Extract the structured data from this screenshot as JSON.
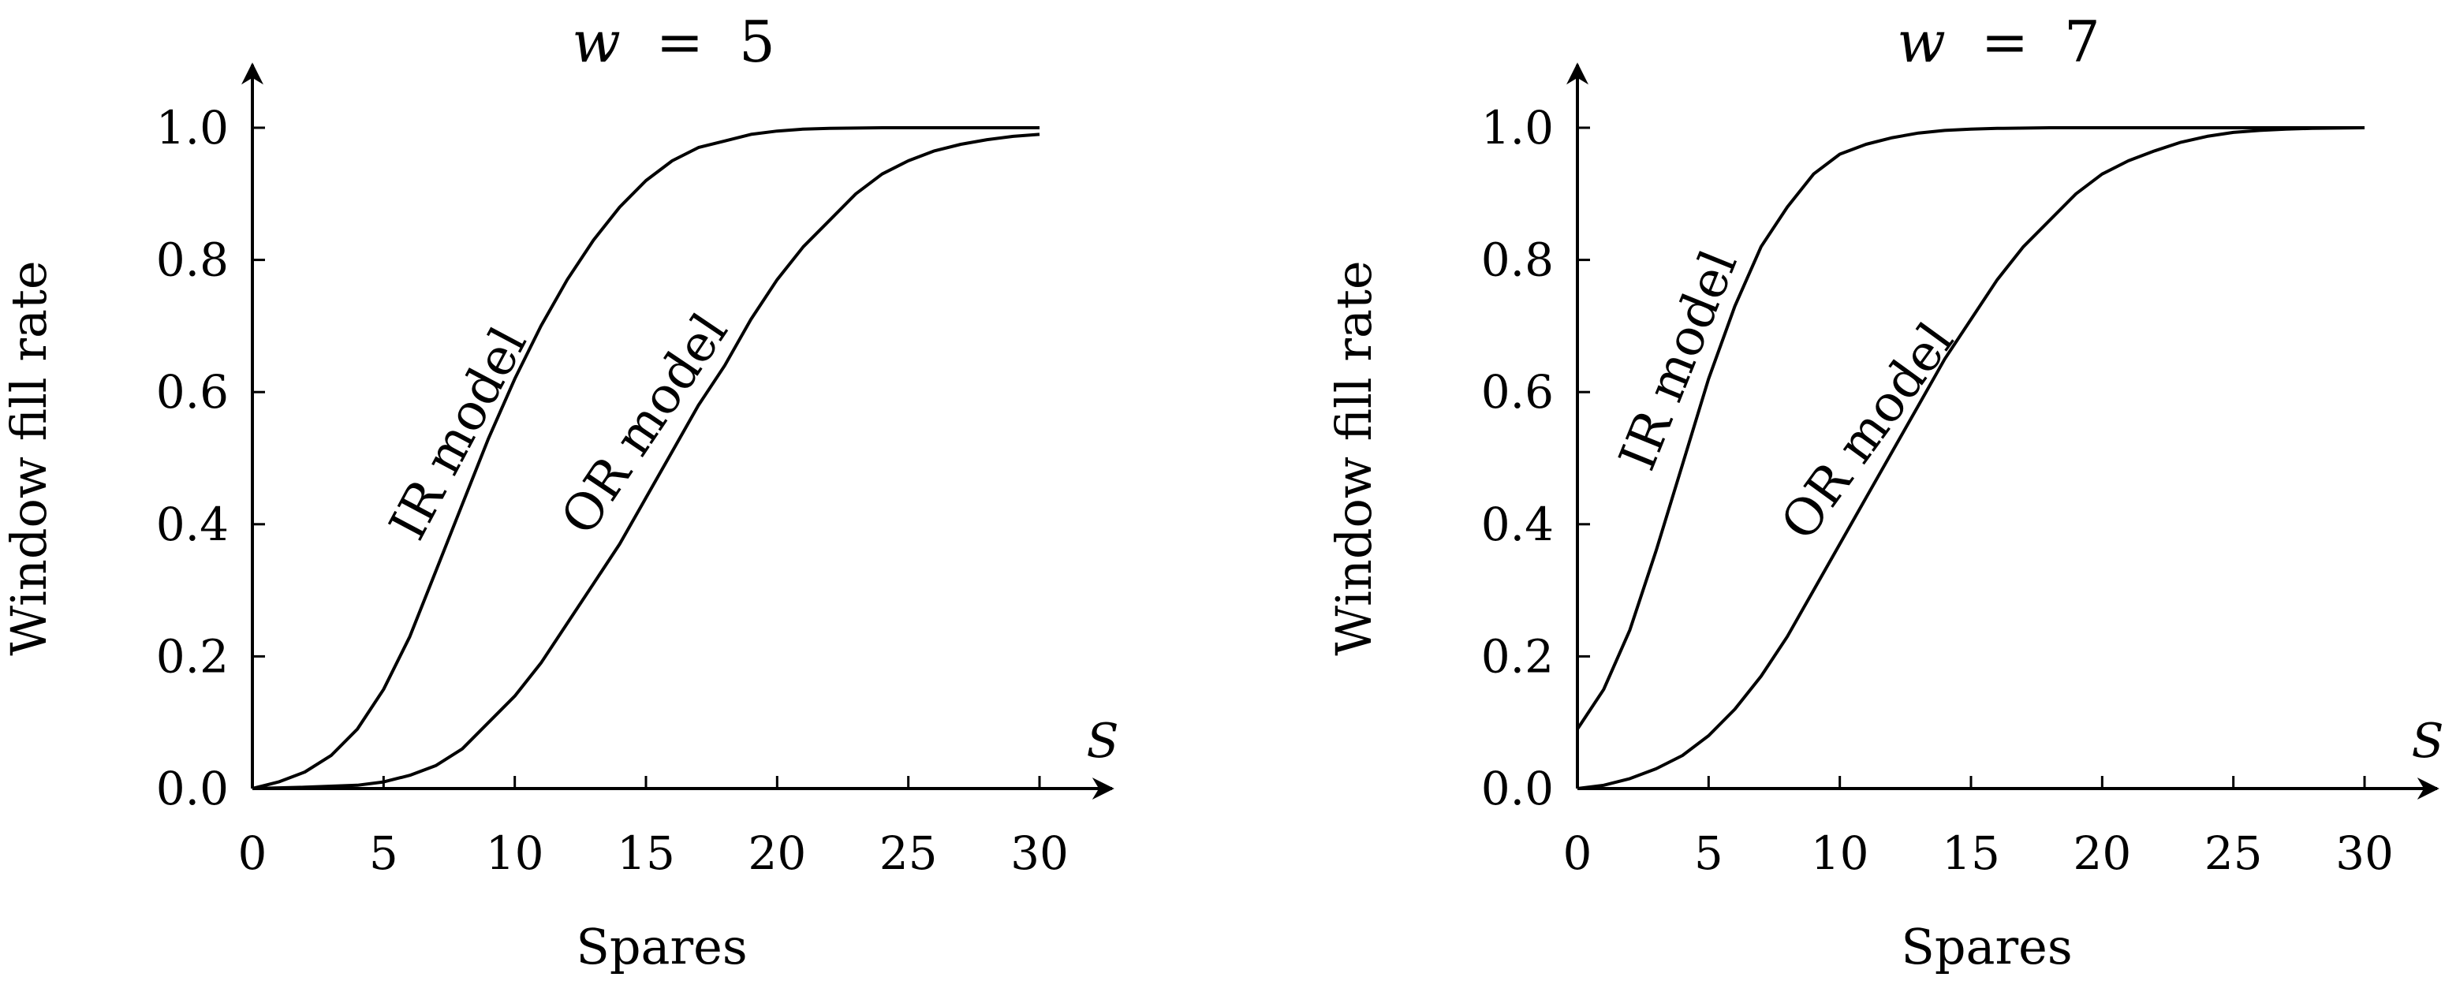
{
  "chart_data": [
    {
      "type": "line",
      "title_var": "w",
      "title_op": "=",
      "title_val": "5",
      "xlabel": "Spares",
      "ylabel": "Window fill rate",
      "axis_var_label": "S",
      "xlim": [
        0,
        30
      ],
      "ylim": [
        0,
        1.0
      ],
      "xticks": [
        "0",
        "5",
        "10",
        "15",
        "20",
        "25",
        "30"
      ],
      "yticks": [
        "0.0",
        "0.2",
        "0.4",
        "0.6",
        "0.8",
        "1.0"
      ],
      "series": [
        {
          "name": "IR model",
          "x": [
            0,
            1,
            2,
            3,
            4,
            5,
            6,
            7,
            8,
            9,
            10,
            11,
            12,
            13,
            14,
            15,
            16,
            17,
            18,
            19,
            20,
            21,
            22,
            24,
            26,
            28,
            30
          ],
          "y": [
            0.0,
            0.01,
            0.025,
            0.05,
            0.09,
            0.15,
            0.23,
            0.33,
            0.43,
            0.53,
            0.62,
            0.7,
            0.77,
            0.83,
            0.88,
            0.92,
            0.95,
            0.97,
            0.98,
            0.99,
            0.995,
            0.998,
            0.999,
            1.0,
            1.0,
            1.0,
            1.0
          ]
        },
        {
          "name": "OR model",
          "x": [
            0,
            2,
            4,
            5,
            6,
            7,
            8,
            9,
            10,
            11,
            12,
            13,
            14,
            15,
            16,
            17,
            18,
            19,
            20,
            21,
            22,
            23,
            24,
            25,
            26,
            27,
            28,
            29,
            30
          ],
          "y": [
            0.0,
            0.002,
            0.005,
            0.01,
            0.02,
            0.035,
            0.06,
            0.1,
            0.14,
            0.19,
            0.25,
            0.31,
            0.37,
            0.44,
            0.51,
            0.58,
            0.64,
            0.71,
            0.77,
            0.82,
            0.86,
            0.9,
            0.93,
            0.95,
            0.965,
            0.975,
            0.982,
            0.987,
            0.99
          ]
        }
      ]
    },
    {
      "type": "line",
      "title_var": "w",
      "title_op": "=",
      "title_val": "7",
      "xlabel": "Spares",
      "ylabel": "Window fill rate",
      "axis_var_label": "S",
      "xlim": [
        0,
        30
      ],
      "ylim": [
        0,
        1.0
      ],
      "xticks": [
        "0",
        "5",
        "10",
        "15",
        "20",
        "25",
        "30"
      ],
      "yticks": [
        "0.0",
        "0.2",
        "0.4",
        "0.6",
        "0.8",
        "1.0"
      ],
      "series": [
        {
          "name": "IR model",
          "x": [
            0,
            1,
            2,
            3,
            4,
            5,
            6,
            7,
            8,
            9,
            10,
            11,
            12,
            13,
            14,
            15,
            16,
            18,
            20,
            22,
            25,
            30
          ],
          "y": [
            0.09,
            0.15,
            0.24,
            0.36,
            0.49,
            0.62,
            0.73,
            0.82,
            0.88,
            0.93,
            0.96,
            0.975,
            0.985,
            0.992,
            0.996,
            0.998,
            0.999,
            1.0,
            1.0,
            1.0,
            1.0,
            1.0
          ]
        },
        {
          "name": "OR model",
          "x": [
            0,
            1,
            2,
            3,
            4,
            5,
            6,
            7,
            8,
            9,
            10,
            11,
            12,
            13,
            14,
            15,
            16,
            17,
            18,
            19,
            20,
            21,
            22,
            23,
            24,
            25,
            26,
            27,
            28,
            30
          ],
          "y": [
            0.0,
            0.005,
            0.015,
            0.03,
            0.05,
            0.08,
            0.12,
            0.17,
            0.23,
            0.3,
            0.37,
            0.44,
            0.51,
            0.58,
            0.65,
            0.71,
            0.77,
            0.82,
            0.86,
            0.9,
            0.93,
            0.95,
            0.965,
            0.978,
            0.987,
            0.993,
            0.996,
            0.998,
            0.999,
            1.0
          ]
        }
      ]
    }
  ]
}
